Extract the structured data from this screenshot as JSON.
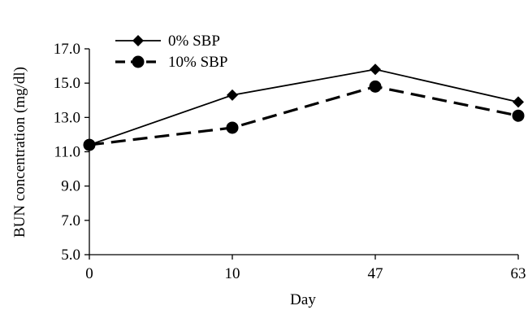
{
  "chart_data": {
    "type": "line",
    "title": "",
    "xlabel": "Day",
    "ylabel": "BUN concentration (mg/dl)",
    "categories": [
      "0",
      "10",
      "47",
      "63"
    ],
    "ylim": [
      5.0,
      17.0
    ],
    "yticks": [
      "5.0",
      "7.0",
      "9.0",
      "11.0",
      "13.0",
      "15.0",
      "17.0"
    ],
    "grid": false,
    "legend_position": "top-left",
    "series": [
      {
        "name": "0% SBP",
        "values": [
          11.4,
          14.3,
          15.8,
          13.9
        ],
        "marker": "diamond",
        "line_style": "solid",
        "color": "#000000"
      },
      {
        "name": "10% SBP",
        "values": [
          11.4,
          12.4,
          14.8,
          13.1
        ],
        "marker": "circle",
        "line_style": "dashed",
        "color": "#000000"
      }
    ]
  }
}
